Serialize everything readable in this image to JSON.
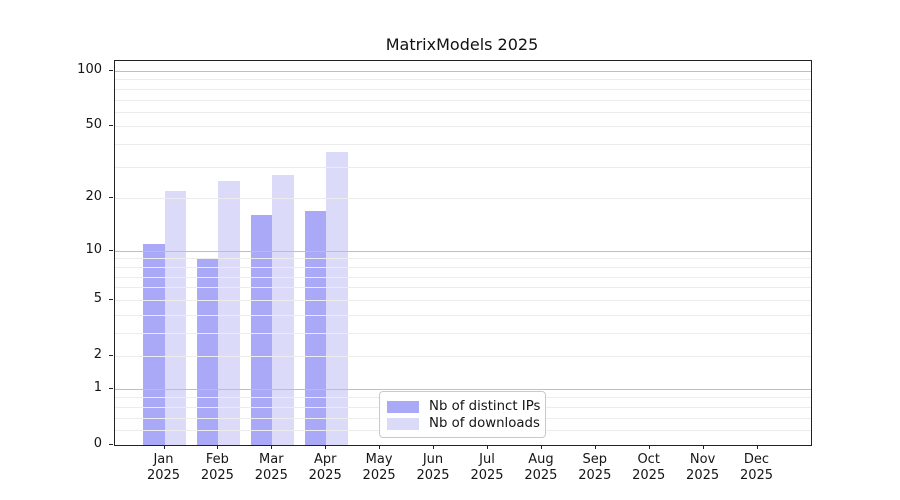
{
  "chart_data": {
    "type": "bar",
    "title": "MatrixModels 2025",
    "scale": "log1p",
    "categories": [
      "Jan",
      "Feb",
      "Mar",
      "Apr",
      "May",
      "Jun",
      "Jul",
      "Aug",
      "Sep",
      "Oct",
      "Nov",
      "Dec"
    ],
    "category_year": "2025",
    "series": [
      {
        "name": "Nb of distinct IPs",
        "color": "#a9a9f8",
        "values": [
          11,
          9,
          16,
          17,
          null,
          null,
          null,
          null,
          null,
          null,
          null,
          null
        ]
      },
      {
        "name": "Nb of downloads",
        "color": "#dbdbf9",
        "values": [
          22,
          25,
          27,
          36,
          null,
          null,
          null,
          null,
          null,
          null,
          null,
          null
        ]
      }
    ],
    "yticks": [
      0,
      1,
      2,
      5,
      10,
      20,
      50,
      100
    ],
    "ylim": [
      0,
      113
    ],
    "grid": {
      "major": [
        1,
        10,
        100
      ],
      "minor": [
        0.2,
        0.4,
        0.6,
        0.8,
        2,
        3,
        4,
        5,
        6,
        7,
        8,
        9,
        20,
        30,
        40,
        50,
        60,
        70,
        80,
        90
      ]
    },
    "legend_position": "lower-center",
    "colors": {
      "axis": "#222222",
      "major_grid": "#bfbfbf",
      "minor_grid": "#ececec",
      "background": "#ffffff"
    }
  }
}
